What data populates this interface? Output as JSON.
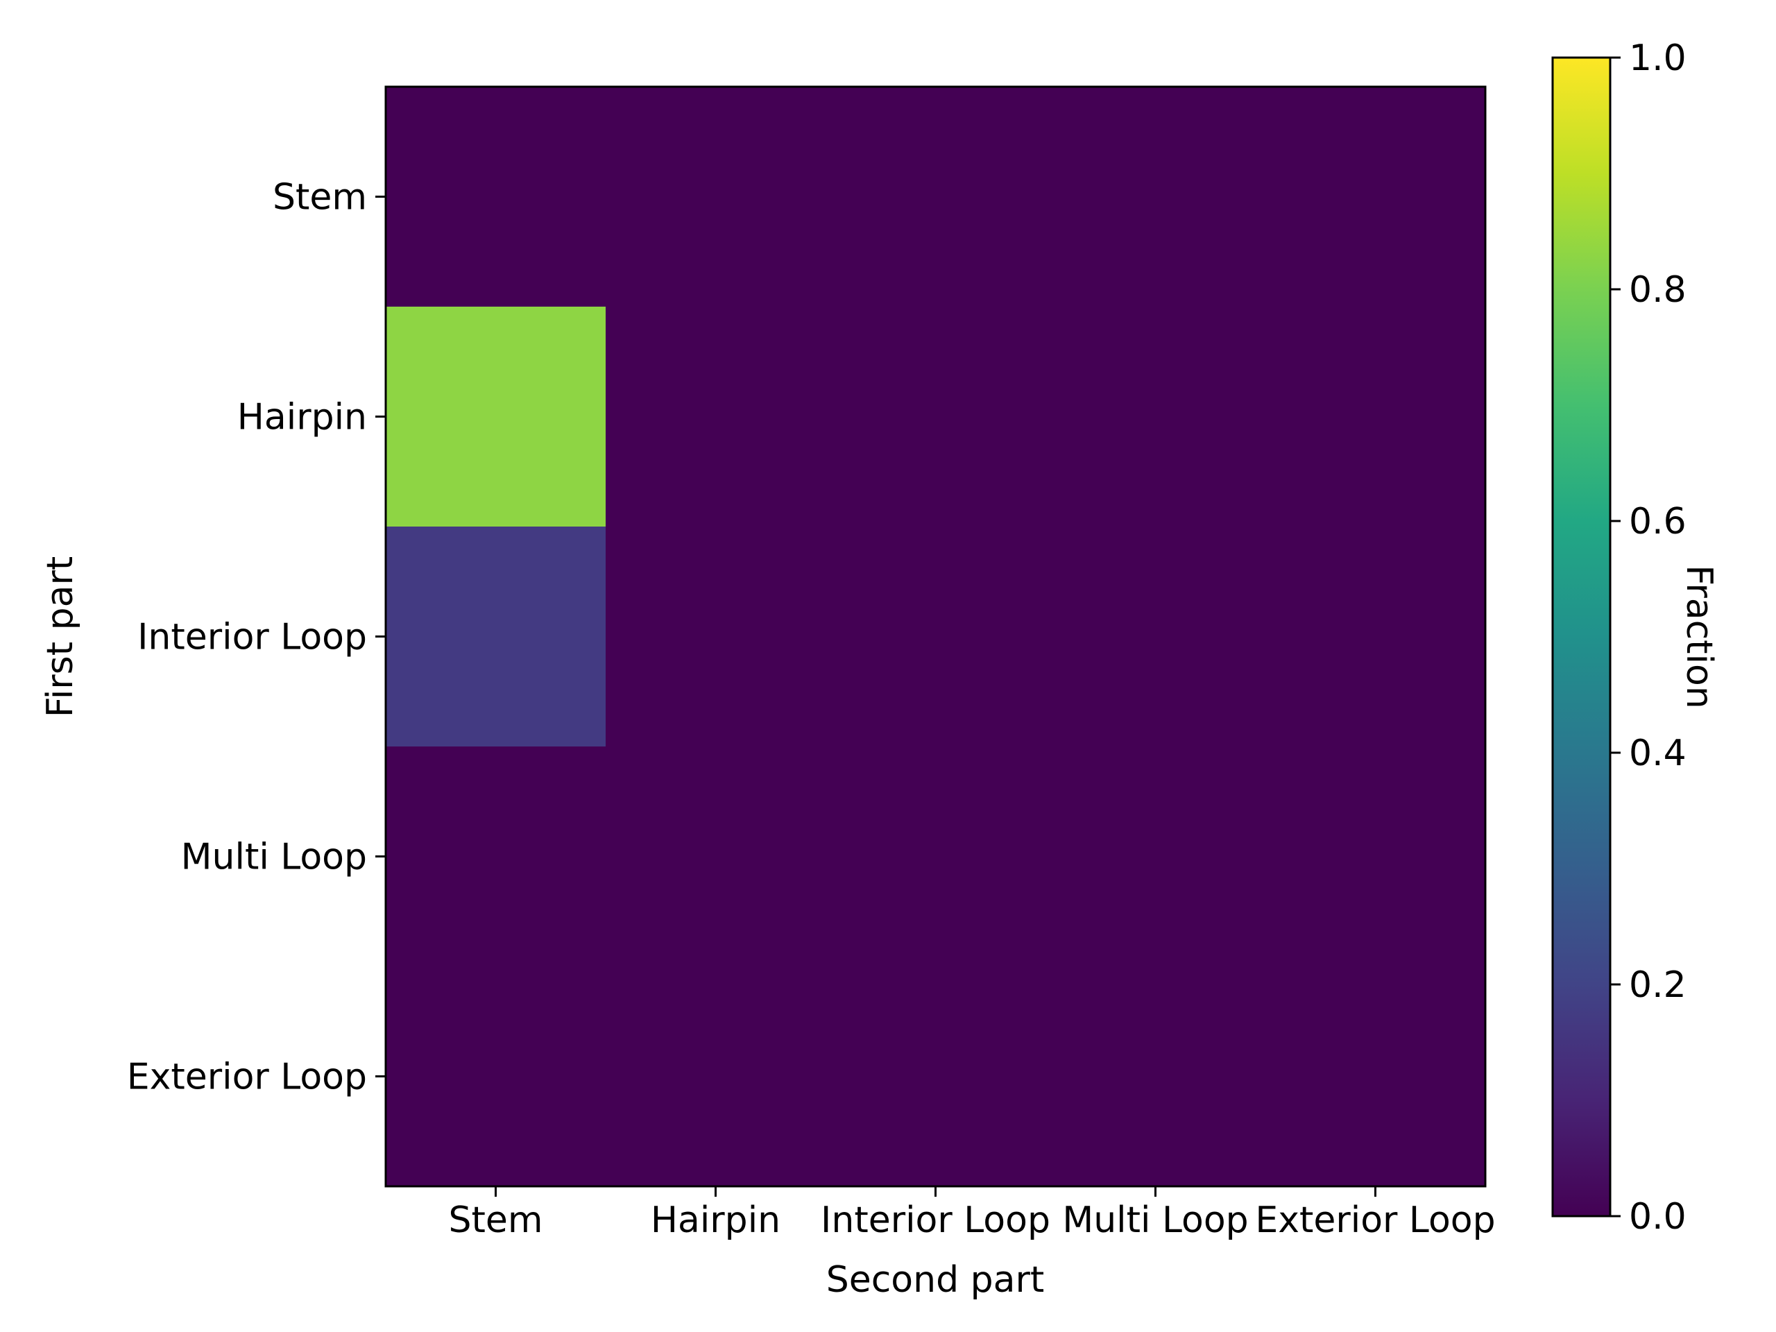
{
  "chart_data": {
    "type": "heatmap",
    "title": "",
    "xlabel": "Second part",
    "ylabel": "First part",
    "x_categories": [
      "Stem",
      "Hairpin",
      "Interior Loop",
      "Multi Loop",
      "Exterior Loop"
    ],
    "y_categories": [
      "Stem",
      "Hairpin",
      "Interior Loop",
      "Multi Loop",
      "Exterior Loop"
    ],
    "values": [
      [
        0.0,
        0.0,
        0.0,
        0.0,
        0.0
      ],
      [
        0.83,
        0.0,
        0.0,
        0.0,
        0.0
      ],
      [
        0.17,
        0.0,
        0.0,
        0.0,
        0.0
      ],
      [
        0.0,
        0.0,
        0.0,
        0.0,
        0.0
      ],
      [
        0.0,
        0.0,
        0.0,
        0.0,
        0.0
      ]
    ],
    "colormap": "viridis",
    "colorbar": {
      "label": "Fraction",
      "range": [
        0.0,
        1.0
      ],
      "ticks": [
        "0.0",
        "0.2",
        "0.4",
        "0.6",
        "0.8",
        "1.0"
      ]
    }
  }
}
